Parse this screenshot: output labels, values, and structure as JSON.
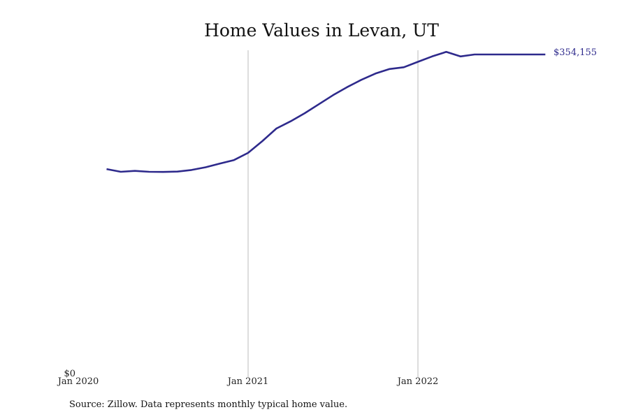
{
  "source_note": "Source: Zillow. Data represents monthly typical home value.",
  "colors": {
    "line": "#2e2a8c",
    "grid": "#bbbbbb",
    "text": "#111111"
  },
  "chart_data": {
    "type": "line",
    "title": "Home Values in Levan, UT",
    "xlabel": "",
    "ylabel": "",
    "x_ticks": [
      "Jan 2020",
      "Jan 2021",
      "Jan 2022"
    ],
    "y_ticks": [
      "$0"
    ],
    "ylim": [
      0,
      354155
    ],
    "xlim": [
      "2020-01",
      "2022-10"
    ],
    "grid": "vertical lines at year ticks",
    "end_label": "$354,155",
    "series": [
      {
        "x": [
          "2020-03",
          "2020-04",
          "2020-05",
          "2020-06",
          "2020-07",
          "2020-08",
          "2020-09",
          "2020-10",
          "2020-11",
          "2020-12",
          "2021-01",
          "2021-02",
          "2021-03",
          "2021-04",
          "2021-05",
          "2021-06",
          "2021-07",
          "2021-08",
          "2021-09",
          "2021-10",
          "2021-11",
          "2021-12",
          "2022-01",
          "2022-02",
          "2022-03",
          "2022-04",
          "2022-05",
          "2022-06",
          "2022-07",
          "2022-08",
          "2022-09",
          "2022-10"
        ],
        "values": [
          227000,
          224000,
          225000,
          224000,
          223800,
          224200,
          226000,
          229000,
          233000,
          237000,
          245000,
          258000,
          272000,
          280000,
          289000,
          299000,
          309000,
          318000,
          326000,
          333000,
          338000,
          340000,
          346000,
          352000,
          357000,
          352000,
          354155,
          354155,
          354155,
          354155,
          354155,
          354155
        ]
      }
    ]
  }
}
